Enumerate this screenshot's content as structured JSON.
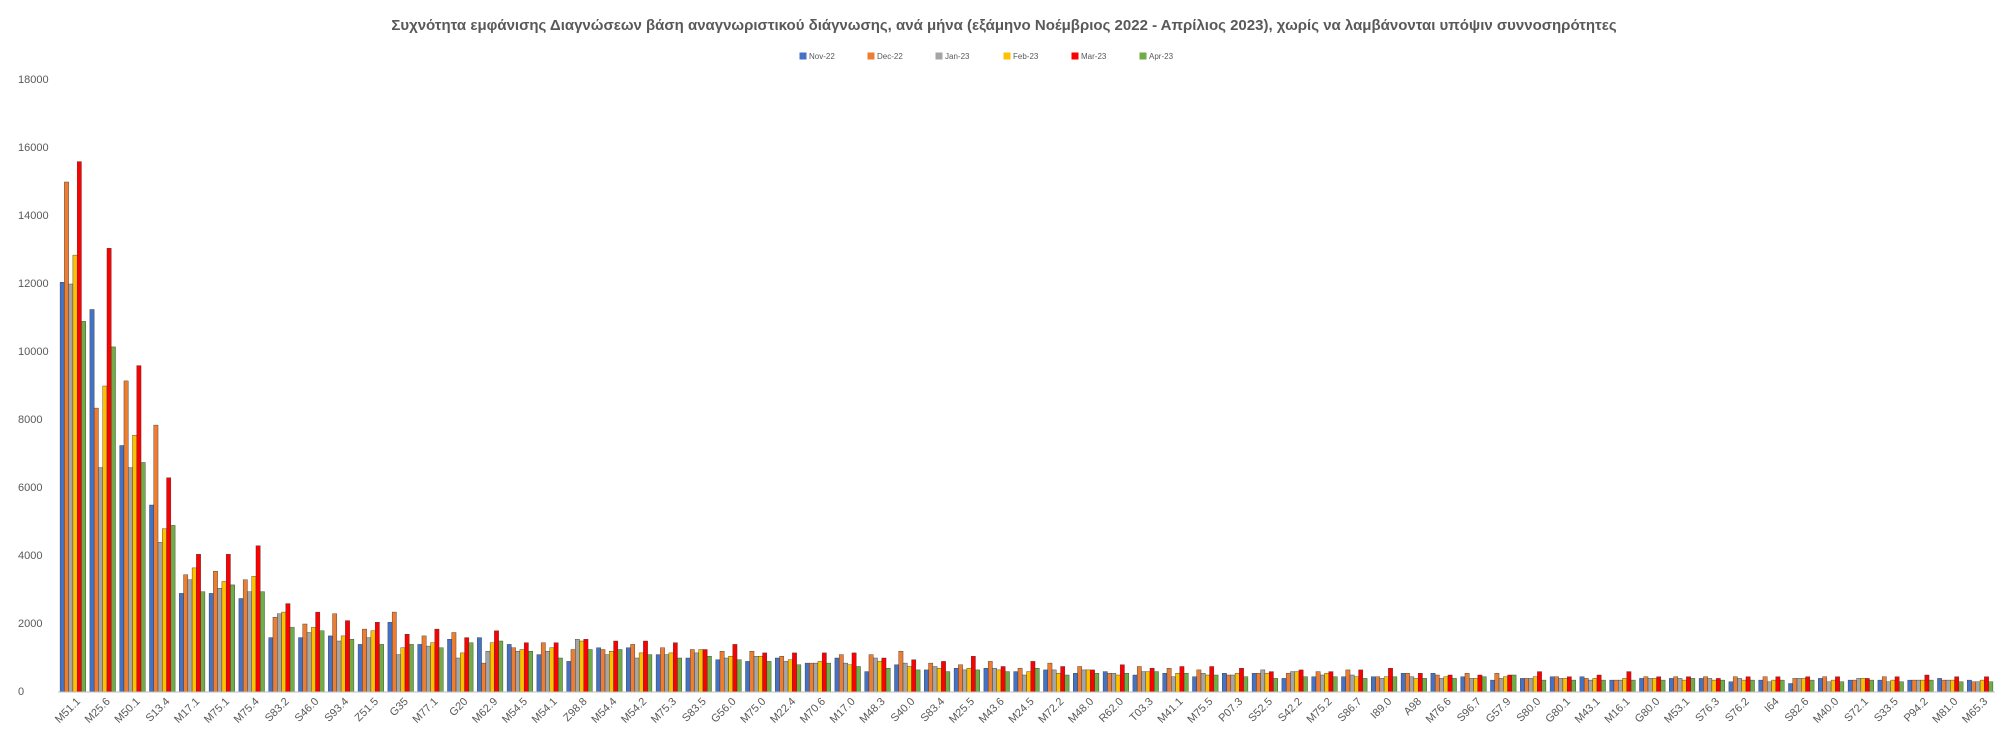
{
  "chart_data": {
    "type": "bar",
    "title": "Συχνότητα εμφάνισης Διαγνώσεων βάση αναγνωριστικού διάγνωσης, ανά μήνα (εξάμηνο Νοέμβριος 2022 - Απρίλιος 2023), χωρίς να λαμβάνονται υπόψιν συννοσηρότητες",
    "categories": [
      "M51.1",
      "M25.6",
      "M50.1",
      "S13.4",
      "M17.1",
      "M75.1",
      "M75.4",
      "S83.2",
      "S46.0",
      "S93.4",
      "Z51.5",
      "G35",
      "M77.1",
      "G20",
      "M62.9",
      "M54.5",
      "M54.1",
      "Z98.8",
      "M54.4",
      "M54.2",
      "M75.3",
      "S83.5",
      "G56.0",
      "M75.0",
      "M22.4",
      "M70.6",
      "M17.0",
      "M48.3",
      "S40.0",
      "S83.4",
      "M25.5",
      "M43.6",
      "M24.5",
      "M72.2",
      "M48.0",
      "R62.0",
      "T03.3",
      "M41.1",
      "M75.5",
      "P07.3",
      "S52.5",
      "S42.2",
      "M75.2",
      "S86.7",
      "I89.0",
      "A98",
      "M76.6",
      "S96.7",
      "G57.9",
      "S80.0",
      "G80.1",
      "M43.1",
      "M16.1",
      "G80.0",
      "M53.1",
      "S76.3",
      "S76.2",
      "I64",
      "S82.6",
      "M40.0",
      "S72.1",
      "S33.5",
      "P94.2",
      "M81.0",
      "M65.3"
    ],
    "series": [
      {
        "name": "Nov-22",
        "color": "#4472C4",
        "values": [
          12050,
          11250,
          7250,
          5500,
          2900,
          2900,
          2750,
          1600,
          1600,
          1650,
          1400,
          2050,
          1400,
          1550,
          1600,
          1400,
          1100,
          900,
          1300,
          1300,
          1100,
          1000,
          950,
          900,
          1000,
          850,
          1000,
          600,
          800,
          650,
          700,
          700,
          600,
          650,
          550,
          600,
          500,
          550,
          450,
          550,
          550,
          400,
          450,
          450,
          450,
          550,
          550,
          450,
          350,
          400,
          450,
          450,
          350,
          400,
          400,
          400,
          300,
          350,
          250,
          400,
          350,
          350,
          350,
          400,
          350
        ]
      },
      {
        "name": "Dec-22",
        "color": "#ED7D31",
        "values": [
          15000,
          8350,
          9150,
          7850,
          3450,
          3550,
          3300,
          2200,
          2000,
          2300,
          1850,
          2350,
          1650,
          1750,
          850,
          1300,
          1450,
          1250,
          1250,
          1400,
          1300,
          1250,
          1200,
          1200,
          1050,
          850,
          1100,
          1100,
          1200,
          850,
          800,
          900,
          700,
          850,
          750,
          550,
          750,
          700,
          650,
          500,
          550,
          550,
          600,
          650,
          450,
          550,
          500,
          550,
          550,
          400,
          450,
          400,
          350,
          450,
          450,
          450,
          450,
          450,
          400,
          450,
          350,
          450,
          350,
          350,
          300
        ]
      },
      {
        "name": "Jan-23",
        "color": "#A5A5A5",
        "values": [
          12000,
          6600,
          6600,
          4400,
          3300,
          3050,
          2950,
          2300,
          1750,
          1500,
          1600,
          1100,
          1350,
          1000,
          1200,
          1200,
          1200,
          1550,
          1100,
          1000,
          1100,
          1150,
          1000,
          1050,
          900,
          850,
          850,
          1000,
          850,
          750,
          650,
          700,
          500,
          650,
          650,
          550,
          600,
          450,
          550,
          500,
          650,
          600,
          500,
          500,
          400,
          450,
          400,
          400,
          400,
          400,
          400,
          350,
          350,
          400,
          400,
          400,
          400,
          300,
          400,
          300,
          400,
          300,
          350,
          350,
          300
        ]
      },
      {
        "name": "Feb-23",
        "color": "#FFC000",
        "values": [
          12850,
          9000,
          7550,
          4800,
          3650,
          3250,
          3400,
          2350,
          1900,
          1650,
          1800,
          1300,
          1450,
          1150,
          1450,
          1250,
          1300,
          1500,
          1200,
          1150,
          1150,
          1250,
          1050,
          1050,
          950,
          900,
          800,
          900,
          750,
          700,
          700,
          650,
          600,
          550,
          650,
          500,
          600,
          550,
          500,
          550,
          550,
          600,
          550,
          450,
          450,
          400,
          450,
          400,
          450,
          450,
          400,
          400,
          400,
          400,
          350,
          350,
          350,
          350,
          400,
          350,
          400,
          350,
          350,
          350,
          350
        ]
      },
      {
        "name": "Mar-23",
        "color": "#FF0000",
        "values": [
          15600,
          13050,
          9600,
          6300,
          4050,
          4050,
          4300,
          2600,
          2350,
          2100,
          2050,
          1700,
          1850,
          1600,
          1800,
          1450,
          1450,
          1550,
          1500,
          1500,
          1450,
          1250,
          1400,
          1150,
          1150,
          1150,
          1150,
          1000,
          950,
          900,
          1050,
          750,
          900,
          750,
          650,
          800,
          700,
          750,
          750,
          700,
          600,
          650,
          600,
          650,
          700,
          550,
          500,
          500,
          500,
          600,
          450,
          500,
          600,
          450,
          450,
          400,
          450,
          450,
          450,
          450,
          400,
          450,
          500,
          450,
          450
        ]
      },
      {
        "name": "Apr-23",
        "color": "#70AD47",
        "values": [
          10900,
          10150,
          6750,
          4900,
          2950,
          3150,
          2950,
          1900,
          1800,
          1550,
          1400,
          1400,
          1300,
          1450,
          1500,
          1200,
          1000,
          1250,
          1250,
          1100,
          1000,
          1050,
          950,
          900,
          800,
          850,
          750,
          700,
          650,
          600,
          650,
          600,
          700,
          500,
          550,
          550,
          600,
          550,
          500,
          450,
          400,
          450,
          450,
          400,
          450,
          400,
          400,
          450,
          500,
          350,
          350,
          350,
          350,
          350,
          400,
          350,
          350,
          350,
          350,
          300,
          350,
          300,
          350,
          300,
          300
        ]
      }
    ],
    "ylim": [
      0,
      18000
    ],
    "yticks": [
      0,
      2000,
      4000,
      6000,
      8000,
      10000,
      12000,
      14000,
      16000,
      18000
    ],
    "grid": false,
    "legend": "top"
  }
}
